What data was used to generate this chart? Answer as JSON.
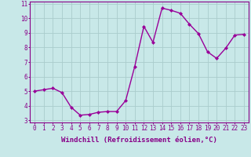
{
  "x": [
    0,
    1,
    2,
    3,
    4,
    5,
    6,
    7,
    8,
    9,
    10,
    11,
    12,
    13,
    14,
    15,
    16,
    17,
    18,
    19,
    20,
    21,
    22,
    23
  ],
  "y": [
    5.0,
    5.1,
    5.2,
    4.9,
    3.9,
    3.35,
    3.4,
    3.55,
    3.6,
    3.6,
    4.35,
    6.7,
    9.45,
    8.35,
    10.7,
    10.55,
    10.35,
    9.6,
    8.95,
    7.7,
    7.25,
    7.95,
    8.85,
    8.9
  ],
  "line_color": "#990099",
  "marker": "D",
  "marker_size": 2,
  "bg_color": "#c8e8e8",
  "grid_color": "#aacccc",
  "xlabel": "Windchill (Refroidissement éolien,°C)",
  "ylim": [
    3,
    11
  ],
  "xlim": [
    -0.5,
    23.5
  ],
  "yticks": [
    3,
    4,
    5,
    6,
    7,
    8,
    9,
    10,
    11
  ],
  "xticks": [
    0,
    1,
    2,
    3,
    4,
    5,
    6,
    7,
    8,
    9,
    10,
    11,
    12,
    13,
    14,
    15,
    16,
    17,
    18,
    19,
    20,
    21,
    22,
    23
  ],
  "tick_fontsize": 5.5,
  "xlabel_fontsize": 6.5,
  "line_width": 1.0,
  "spine_color": "#880088",
  "tick_color": "#880088",
  "label_color": "#880088"
}
